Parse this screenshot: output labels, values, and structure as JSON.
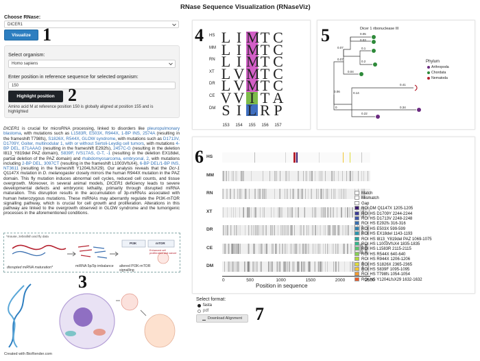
{
  "app_title": "RNase Sequence Visualization (RNaseViz)",
  "choose_rnase": {
    "label": "Choose RNase:",
    "value": "DICER1"
  },
  "visualize_button": "Visualize",
  "organism": {
    "label": "Select organism:",
    "value": "Homo sapiens"
  },
  "position": {
    "label": "Enter position in reference sequence for selected organism:",
    "value": "150"
  },
  "highlight_button": "Highlight position",
  "alignment_note": "Amino acid M at reference position 150 is globally aligned at position 155 and is highlighted",
  "description": {
    "p1": "DICER1",
    "p2": " is crucial for microRNA processing, linked to disorders like ",
    "p3": "pleuropulmonary blastoma",
    "p4": ", with mutations such as ",
    "p5": "L1583R, E503X, R944X, 1-BP INS, 2574A",
    "p6": " (resulting in the frameshift T798fs), ",
    "p7": "S1826X, R544X, GLOW syndrome",
    "p8": ", with mutations such as ",
    "p9": "D1713V, D1709Y, Goiter, multinodular 1, with or without Sertoli-Leydig cell tumors",
    "p10": ", with mutations ",
    "p11": "4-BP DEL, 871AAAG",
    "p12": " (resulting in the frameshift E292fs), ",
    "p13": "2457C-G",
    "p14": " (resulting in the deletion I813_Y819del PAZ domain), ",
    "p15": "S839F, IVS17AS, G-T, -1",
    "p16": " (resulting in the deletion EX18del, partial deletion of the PAZ domain) and ",
    "p17": "rhabdomyosarcoma, embryonal, 2",
    "p18": ", with mutations including ",
    "p19": "2-BP DEL, 3097CT",
    "p20": " (resulting in the frameshift L1003VfsX4), ",
    "p21": "6-BP DEL/1-BP INS, NT3611",
    "p22": " (resulting in the frameshift Y1204LfsX29). Our analysis reveals that the ",
    "p23": "Dcr-1",
    "p24": " Q1147X mutation in ",
    "p25": "D. melanogaster",
    "p26": " closely mirrors the human R944X mutation in the PAZ domain. This fly mutation induces abnormal cell cycles, reduced cell counts, and tissue overgrowth. Moreover, in several animal models, ",
    "p27": "DICER1",
    "p28": " deficiency leads to severe developmental defects and embryonic lethality, primarily through disrupted miRNA maturation. This disruption results in the accumulation of 3p-miRNAs associated with human heterozygous mutations. These miRNAs may aberrantly regulate the PI3K-mTOR signalling pathway, which is crucial for cell growth and proliferation. Alterations in this pathway are linked to the overgrowth observed in GLOW syndrome and the tumorigenic processes in the aforementioned conditions."
  },
  "illustration": {
    "note": "*mouse, zebrafish and fly data",
    "step1": "disrupted miRNA maturation*",
    "step2": "miRNA 5p/3p imbalance",
    "step3": "altered PI3K-mTOR signalling",
    "pi3k": "PI3K",
    "mtor": "mTOR",
    "outcome": "Enhanced cell proliferation and cancer",
    "credit": "Created with BioRender.com"
  },
  "steps": [
    "1",
    "2",
    "3",
    "4",
    "5",
    "6",
    "7"
  ],
  "seq_logo": {
    "species": [
      "HS",
      "MM",
      "RN",
      "XT",
      "DR",
      "CE",
      "DM"
    ],
    "rows": [
      [
        "L",
        "I",
        "M",
        "T",
        "C"
      ],
      [
        "L",
        "I",
        "M",
        "T",
        "C"
      ],
      [
        "L",
        "I",
        "M",
        "T",
        "C"
      ],
      [
        "L",
        "V",
        "M",
        "T",
        "C"
      ],
      [
        "L",
        "V",
        "M",
        "T",
        "C"
      ],
      [
        "V",
        "V",
        "I",
        "T",
        "A"
      ],
      [
        "S",
        "I",
        "L",
        "R",
        "P"
      ]
    ],
    "positions": [
      "153",
      "154",
      "155",
      "156",
      "157"
    ],
    "highlight_colors": {
      "M": "#d35fc7",
      "I": "#7dbb4a",
      "L": "#3f6fc0"
    }
  },
  "tree": {
    "title": "Dicer 1 ribonuclease III",
    "legend_title": "Phylum",
    "legend": [
      {
        "name": "Arthropoda",
        "color": "#6b2a80"
      },
      {
        "name": "Chordata",
        "color": "#2e8a3a"
      },
      {
        "name": "Nematoda",
        "color": "#b5202e"
      }
    ],
    "branch_labels": [
      "0.05",
      "0.03",
      "0.07",
      "0.1",
      "0.2",
      "0.07",
      "0.04",
      "0.41",
      "0.34",
      "0.14",
      "0.22",
      "0.06",
      "0"
    ]
  },
  "alignment": {
    "species": [
      "HS",
      "MM",
      "RN",
      "XT",
      "DR",
      "CE",
      "DM"
    ],
    "x_axis_label": "Position in sequence",
    "x_ticks": [
      "0",
      "500",
      "1000",
      "1500",
      "2000",
      "2500"
    ],
    "legend": [
      {
        "name": "Match",
        "color": "#ffffff"
      },
      {
        "name": "Mismatch",
        "color": "#ffffff"
      },
      {
        "name": "Gap",
        "color": "#ffffff"
      },
      {
        "name": "ROI DM Q1147X 1205-1205",
        "color": "#3a1a6e"
      },
      {
        "name": "ROI HS D1709Y 2244-2244",
        "color": "#3b3b95"
      },
      {
        "name": "ROI HS D1713V 2248-2248",
        "color": "#3f55a8"
      },
      {
        "name": "ROI HS E292fs 316-316",
        "color": "#3a6fb0"
      },
      {
        "name": "ROI HS E503X 599-599",
        "color": "#2f82b2"
      },
      {
        "name": "ROI HS EX18del 1143-1193",
        "color": "#2a95ae"
      },
      {
        "name": "ROI HS I813_Y819del PAZ 1069-1075",
        "color": "#2aa6a0"
      },
      {
        "name": "ROI HS L1003VfsX4 1835-1835",
        "color": "#33b78c"
      },
      {
        "name": "ROI HS L1583R 2115-2115",
        "color": "#58c46f"
      },
      {
        "name": "ROI HS R544X 640-640",
        "color": "#86cf54"
      },
      {
        "name": "ROI HS R944X 1206-1206",
        "color": "#b5d83f"
      },
      {
        "name": "ROI HS S1826X 2365-2365",
        "color": "#dfdc36"
      },
      {
        "name": "ROI HS S839F 1095-1095",
        "color": "#f2c532"
      },
      {
        "name": "ROI HS T798fs 1054-1054",
        "color": "#f29a2e"
      },
      {
        "name": "ROI HS Y1204LfsX29 1632-1632",
        "color": "#e85a2a"
      }
    ]
  },
  "format": {
    "label": "Select format:",
    "options": [
      "fasta",
      "pdf"
    ],
    "selected": "fasta"
  },
  "download_button": "Download Alignment"
}
